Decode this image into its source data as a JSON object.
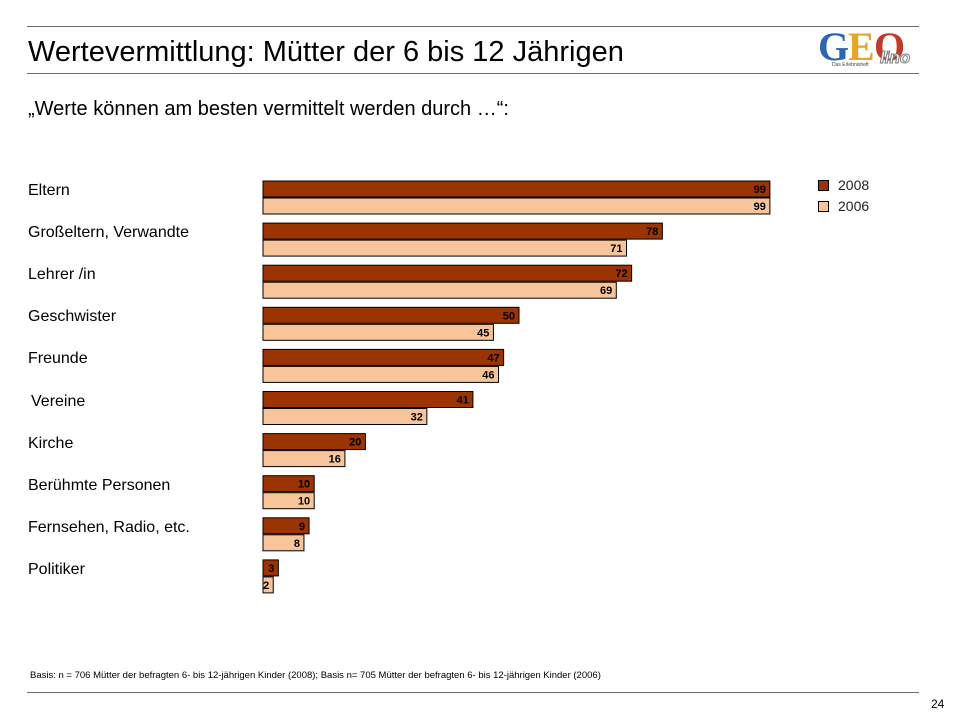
{
  "page": {
    "title": "Wertevermittlung: Mütter der 6 bis 12 Jährigen",
    "subtitle": "„Werte können am besten vermittelt werden durch …“:",
    "footnote": "Basis: n = 706 Mütter der befragten 6- bis 12-jährigen Kinder (2008); Basis n= 705 Mütter der befragten 6- bis 12-jährigen Kinder (2006)",
    "page_number": "24"
  },
  "logo": {
    "letter_g": "G",
    "letter_e": "E",
    "letter_o": "O",
    "suffix": "lino",
    "tagline": "Das Erlebnisheft"
  },
  "colors": {
    "series_2008": "#9b3400",
    "series_2006": "#f8c59a"
  },
  "chart_data": {
    "type": "bar",
    "orientation": "horizontal",
    "categories": [
      "Eltern",
      "Großeltern, Verwandte",
      "Lehrer /in",
      "Geschwister",
      "Freunde",
      "Vereine",
      "Kirche",
      "Berühmte Personen",
      "Fernsehen, Radio, etc.",
      "Politiker"
    ],
    "series": [
      {
        "name": "2008",
        "values": [
          99,
          78,
          72,
          50,
          47,
          41,
          20,
          10,
          9,
          3
        ]
      },
      {
        "name": "2006",
        "values": [
          99,
          71,
          69,
          45,
          46,
          32,
          16,
          10,
          8,
          2
        ]
      }
    ],
    "xlim": [
      0,
      100
    ],
    "grid": false,
    "legend": "top-right"
  }
}
